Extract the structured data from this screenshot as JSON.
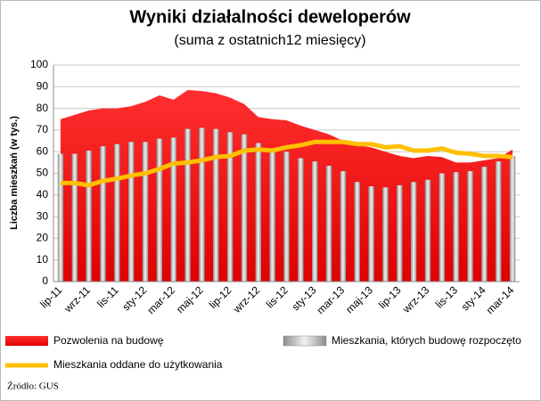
{
  "chart_data": {
    "type": "combo",
    "title": "Wyniki działalności deweloperów",
    "subtitle": "(suma z ostatnich12 miesięcy)",
    "y_label": "Liczba mieszkań (w tys.)",
    "source": "Źródło: GUS",
    "categories": [
      "lip-11",
      null,
      "wrz-11",
      null,
      "lis-11",
      null,
      "sty-12",
      null,
      "mar-12",
      null,
      "maj-12",
      null,
      "lip-12",
      null,
      "wrz-12",
      null,
      "lis-12",
      null,
      "sty-13",
      null,
      "mar-13",
      null,
      "maj-13",
      null,
      "lip-13",
      null,
      "wrz-13",
      null,
      "lis-13",
      null,
      "sty-14",
      null,
      "mar-14"
    ],
    "series": [
      {
        "name": "Pozwolenia na budowę",
        "type": "area",
        "color": "#ff0000",
        "values": [
          75,
          77,
          79,
          80,
          80,
          81,
          83,
          86,
          84,
          88.5,
          88,
          87,
          85,
          82,
          76,
          75,
          74.5,
          72,
          70,
          68,
          65,
          63,
          62,
          60,
          58,
          57,
          58,
          57.5,
          55,
          55,
          56,
          57,
          61
        ]
      },
      {
        "name": "Mieszkania, których budowę rozpoczęto",
        "type": "bar",
        "color": "#bfbfbf",
        "values": [
          59,
          59,
          60.5,
          62.5,
          63.5,
          64.5,
          64.5,
          66,
          66.5,
          70.5,
          71,
          70.5,
          69,
          68,
          64,
          61,
          60,
          57,
          55.5,
          53.5,
          51,
          46,
          44,
          43.5,
          44.5,
          46,
          47,
          50,
          50.5,
          51,
          53,
          55.5,
          58
        ]
      },
      {
        "name": "Mieszkania oddane do użytkowania",
        "type": "line",
        "color": "#ffc000",
        "values": [
          45.5,
          45.5,
          44.5,
          46.5,
          47.5,
          49,
          50,
          52,
          54.5,
          55,
          56,
          57.5,
          58,
          60.5,
          61,
          60.5,
          62,
          63,
          64.5,
          64.5,
          64.5,
          63.5,
          63.5,
          62,
          62.5,
          60.5,
          60.5,
          61.5,
          59.5,
          59,
          58,
          58,
          57.5
        ]
      }
    ],
    "ylim": [
      0,
      100
    ],
    "yticks": [
      0,
      10,
      20,
      30,
      40,
      50,
      60,
      70,
      80,
      90,
      100
    ],
    "grid": true
  }
}
